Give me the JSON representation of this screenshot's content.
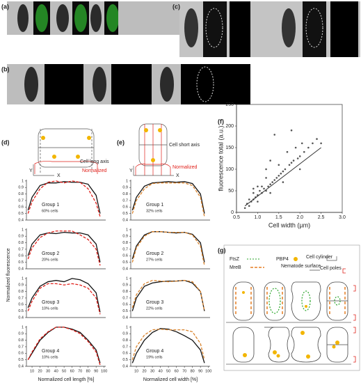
{
  "figure": {
    "a": "(a)",
    "b": "(b)",
    "c": "(c)",
    "d": "(d)",
    "e": "(e)",
    "f": "(f)",
    "g": "(g)",
    "d_axis": "Cell long axis",
    "d_norm": "Normalized",
    "e_axis": "Cell short axis",
    "e_norm": "Normalized",
    "y": "Y",
    "x": "X",
    "ylabel": "Normalized fluorescence",
    "d_xlabel": "Normalized cell length [%]",
    "e_xlabel": "Normalized cell width [%]",
    "g_legend": {
      "ftsz": "FtsZ",
      "pbp4": "PBP4",
      "cylinder": "Cell cylinder",
      "mreb": "MreB",
      "nematode": "Nematode surface",
      "poles": "Cell poles"
    }
  },
  "chart_data": [
    {
      "type": "line",
      "title": "Group 1",
      "subtitle": "60% cells",
      "x": [
        5,
        10,
        20,
        30,
        40,
        50,
        60,
        70,
        80,
        90,
        95
      ],
      "xlim": [
        3,
        102
      ],
      "ylim": [
        0.4,
        1.02
      ],
      "yticks": [
        0.4,
        0.5,
        0.6,
        0.7,
        0.8,
        0.9,
        1
      ],
      "series": [
        {
          "color": "#111",
          "dash": false,
          "values": [
            0.55,
            0.75,
            0.93,
            0.97,
            0.97,
            0.99,
            0.98,
            0.98,
            0.95,
            0.78,
            0.5
          ]
        },
        {
          "color": "#e0201a",
          "dash": true,
          "values": [
            0.5,
            0.68,
            0.88,
            0.98,
            1.0,
            0.97,
            1.0,
            0.98,
            0.88,
            0.66,
            0.45
          ]
        }
      ]
    },
    {
      "type": "line",
      "title": "Group 2",
      "subtitle": "20% cells",
      "x": [
        5,
        10,
        20,
        30,
        40,
        50,
        60,
        70,
        80,
        90,
        95
      ],
      "xlim": [
        3,
        102
      ],
      "ylim": [
        0.4,
        1.02
      ],
      "yticks": [
        0.4,
        0.5,
        0.6,
        0.7,
        0.8,
        0.9,
        1
      ],
      "series": [
        {
          "color": "#111",
          "dash": false,
          "values": [
            0.6,
            0.78,
            0.92,
            0.95,
            0.94,
            0.96,
            0.95,
            0.95,
            0.92,
            0.78,
            0.5
          ]
        },
        {
          "color": "#e0201a",
          "dash": true,
          "values": [
            0.55,
            0.72,
            0.88,
            0.95,
            0.98,
            0.98,
            0.98,
            0.92,
            0.85,
            0.7,
            0.45
          ]
        }
      ]
    },
    {
      "type": "line",
      "title": "Group 3",
      "subtitle": "10% cells",
      "x": [
        5,
        10,
        20,
        30,
        40,
        50,
        60,
        70,
        80,
        90,
        95
      ],
      "xlim": [
        3,
        102
      ],
      "ylim": [
        0.4,
        1.02
      ],
      "yticks": [
        0.4,
        0.5,
        0.6,
        0.7,
        0.8,
        0.9,
        1
      ],
      "series": [
        {
          "color": "#111",
          "dash": false,
          "values": [
            0.55,
            0.7,
            0.88,
            0.95,
            0.97,
            0.95,
            1.0,
            0.98,
            0.92,
            0.78,
            0.48
          ]
        },
        {
          "color": "#e0201a",
          "dash": true,
          "values": [
            0.5,
            0.65,
            0.85,
            0.92,
            0.92,
            0.9,
            0.92,
            0.9,
            0.85,
            0.7,
            0.45
          ]
        }
      ]
    },
    {
      "type": "line",
      "title": "Group 4",
      "subtitle": "10% cells",
      "x": [
        5,
        10,
        20,
        30,
        40,
        50,
        60,
        70,
        80,
        90,
        95
      ],
      "xlim": [
        3,
        102
      ],
      "ylim": [
        0.4,
        1.02
      ],
      "yticks": [
        0.4,
        0.5,
        0.6,
        0.7,
        0.8,
        0.9,
        1
      ],
      "xticks": [
        10,
        20,
        30,
        40,
        50,
        60,
        70,
        80,
        90,
        100
      ],
      "series": [
        {
          "color": "#111",
          "dash": false,
          "values": [
            0.5,
            0.6,
            0.8,
            0.92,
            1.0,
            1.0,
            0.97,
            0.92,
            0.8,
            0.65,
            0.45
          ]
        },
        {
          "color": "#e0201a",
          "dash": true,
          "values": [
            0.5,
            0.62,
            0.82,
            0.93,
            1.0,
            1.0,
            0.96,
            0.9,
            0.78,
            0.62,
            0.42
          ]
        }
      ]
    },
    {
      "type": "line",
      "title": "Group 1",
      "subtitle": "32% cells",
      "x": [
        5,
        10,
        20,
        30,
        40,
        50,
        60,
        70,
        80,
        90,
        95
      ],
      "xlim": [
        3,
        102
      ],
      "ylim": [
        0.4,
        1.02
      ],
      "yticks": [
        0.4,
        0.5,
        0.6,
        0.7,
        0.8,
        0.9,
        1
      ],
      "series": [
        {
          "color": "#111",
          "dash": false,
          "values": [
            0.55,
            0.75,
            0.92,
            0.97,
            0.98,
            0.99,
            0.98,
            0.99,
            0.96,
            0.8,
            0.5
          ]
        },
        {
          "color": "#d9822b",
          "dash": true,
          "values": [
            0.5,
            0.7,
            0.88,
            0.96,
            0.97,
            0.97,
            0.97,
            0.97,
            0.93,
            0.75,
            0.45
          ]
        }
      ]
    },
    {
      "type": "line",
      "title": "Group 2",
      "subtitle": "27% cells",
      "x": [
        5,
        10,
        20,
        30,
        40,
        50,
        60,
        70,
        80,
        90,
        95
      ],
      "xlim": [
        3,
        102
      ],
      "ylim": [
        0.4,
        1.02
      ],
      "yticks": [
        0.4,
        0.5,
        0.6,
        0.7,
        0.8,
        0.9,
        1
      ],
      "series": [
        {
          "color": "#111",
          "dash": false,
          "values": [
            0.55,
            0.75,
            0.92,
            0.97,
            0.97,
            0.96,
            0.95,
            0.96,
            0.93,
            0.8,
            0.5
          ]
        },
        {
          "color": "#d9822b",
          "dash": true,
          "values": [
            0.5,
            0.72,
            0.9,
            0.97,
            0.97,
            0.96,
            0.96,
            0.96,
            0.92,
            0.75,
            0.45
          ]
        }
      ]
    },
    {
      "type": "line",
      "title": "Group 3",
      "subtitle": "22% cells",
      "x": [
        5,
        10,
        20,
        30,
        40,
        50,
        60,
        70,
        80,
        90,
        95
      ],
      "xlim": [
        3,
        102
      ],
      "ylim": [
        0.4,
        1.02
      ],
      "yticks": [
        0.4,
        0.5,
        0.6,
        0.7,
        0.8,
        0.9,
        1
      ],
      "series": [
        {
          "color": "#111",
          "dash": false,
          "values": [
            0.5,
            0.7,
            0.88,
            0.93,
            0.95,
            0.96,
            0.96,
            0.97,
            0.93,
            0.8,
            0.5
          ]
        },
        {
          "color": "#d9822b",
          "dash": true,
          "values": [
            0.55,
            0.75,
            0.92,
            0.97,
            0.96,
            0.95,
            0.96,
            0.97,
            0.95,
            0.8,
            0.5
          ]
        }
      ]
    },
    {
      "type": "line",
      "title": "Group 4",
      "subtitle": "19% cells",
      "x": [
        5,
        10,
        20,
        30,
        40,
        50,
        60,
        70,
        80,
        90,
        95
      ],
      "xlim": [
        3,
        102
      ],
      "ylim": [
        0.4,
        1.02
      ],
      "yticks": [
        0.4,
        0.5,
        0.6,
        0.7,
        0.8,
        0.9,
        1
      ],
      "xticks": [
        10,
        20,
        30,
        40,
        50,
        60,
        70,
        80,
        90,
        100
      ],
      "series": [
        {
          "color": "#111",
          "dash": false,
          "values": [
            0.45,
            0.6,
            0.8,
            0.92,
            0.98,
            0.97,
            0.93,
            0.87,
            0.8,
            0.65,
            0.45
          ]
        },
        {
          "color": "#d9822b",
          "dash": true,
          "values": [
            0.5,
            0.7,
            0.88,
            0.96,
            0.97,
            0.96,
            0.96,
            0.96,
            0.93,
            0.75,
            0.5
          ]
        }
      ]
    },
    {
      "type": "scatter",
      "xlabel": "Cell width (µm)",
      "ylabel": "fluorescence total (a.u.)",
      "xlim": [
        0.5,
        3.0
      ],
      "ylim": [
        0,
        250
      ],
      "xticks": [
        0.5,
        {
          "value": 1.0,
          "label": "1.0"
        },
        1.5,
        {
          "value": 2.0,
          "label": "2.0"
        },
        2.5,
        {
          "value": 3.0,
          "label": "3.0"
        }
      ],
      "yticks": [
        0,
        50,
        100,
        150,
        200,
        250
      ],
      "series": [
        {
          "type": "scatter",
          "color": "#555",
          "x": [
            0.7,
            0.75,
            0.8,
            0.8,
            0.85,
            0.9,
            0.9,
            0.95,
            1.0,
            1.0,
            1.05,
            1.1,
            1.1,
            1.15,
            1.2,
            1.2,
            1.25,
            1.3,
            1.3,
            1.35,
            1.4,
            1.45,
            1.5,
            1.5,
            1.55,
            1.6,
            1.65,
            1.7,
            1.75,
            1.8,
            1.85,
            1.9,
            1.95,
            2.0,
            2.05,
            2.1,
            2.2,
            2.3,
            2.4,
            1.2,
            1.0,
            1.6,
            2.0,
            1.4,
            0.9,
            1.8,
            2.5,
            1.3
          ],
          "values": [
            10,
            20,
            15,
            30,
            25,
            30,
            45,
            35,
            40,
            25,
            50,
            45,
            60,
            55,
            50,
            80,
            60,
            65,
            45,
            70,
            75,
            80,
            85,
            110,
            90,
            95,
            100,
            140,
            110,
            115,
            120,
            150,
            125,
            130,
            160,
            140,
            150,
            160,
            170,
            100,
            60,
            70,
            100,
            180,
            55,
            190,
            160,
            120
          ]
        },
        {
          "type": "line",
          "color": "#333",
          "x": [
            0.7,
            2.5
          ],
          "values": [
            15,
            150
          ]
        }
      ]
    }
  ]
}
